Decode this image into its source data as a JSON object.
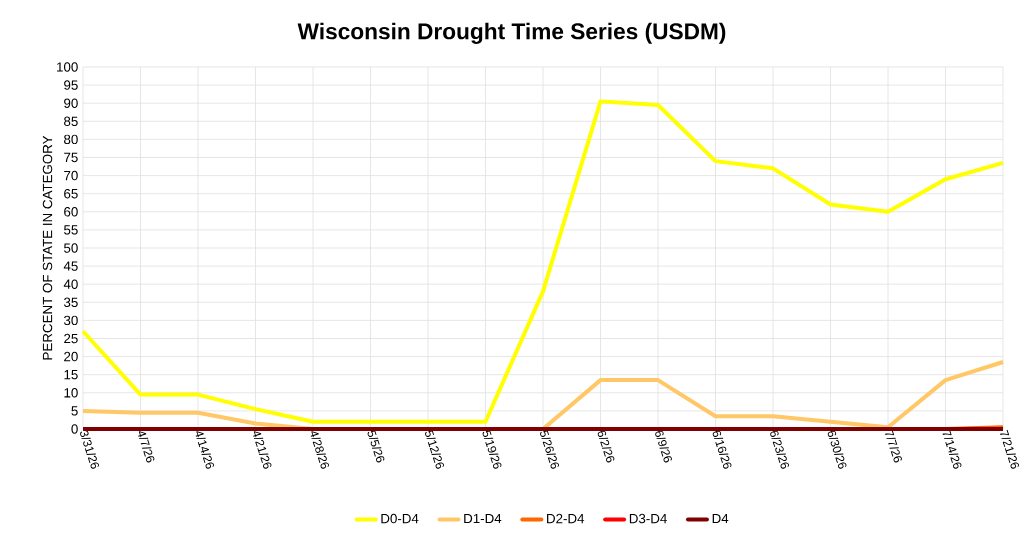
{
  "chart_data": {
    "type": "line",
    "title": "Wisconsin Drought Time Series (USDM)",
    "ylabel": "PERCENT OF STATE IN CATEGORY",
    "categories": [
      "3/31/26",
      "4/7/26",
      "4/14/26",
      "4/21/26",
      "4/28/26",
      "5/5/26",
      "5/12/26",
      "5/19/26",
      "5/26/26",
      "6/2/26",
      "6/9/26",
      "6/16/26",
      "6/23/26",
      "6/30/26",
      "7/7/26",
      "7/14/26",
      "7/21/26"
    ],
    "series": [
      {
        "name": "D0-D4",
        "color": "#ffff00",
        "values": [
          27,
          9.5,
          9.5,
          5.5,
          2,
          2,
          2,
          2,
          38,
          90.5,
          89.5,
          74,
          72,
          62,
          60,
          69,
          73.5
        ]
      },
      {
        "name": "D1-D4",
        "color": "#ffc766",
        "values": [
          5,
          4.5,
          4.5,
          1.5,
          0,
          0,
          0,
          0,
          0,
          13.5,
          13.5,
          3.5,
          3.5,
          2,
          0.5,
          13.5,
          18.5
        ]
      },
      {
        "name": "D2-D4",
        "color": "#ff6600",
        "values": [
          null,
          null,
          null,
          null,
          null,
          null,
          null,
          null,
          null,
          null,
          null,
          null,
          null,
          null,
          null,
          0,
          0.5
        ]
      },
      {
        "name": "D3-D4",
        "color": "#ff0000",
        "values": [
          null,
          null,
          null,
          null,
          null,
          null,
          null,
          null,
          null,
          null,
          null,
          null,
          null,
          null,
          null,
          null,
          null
        ]
      },
      {
        "name": "D4",
        "color": "#7f0000",
        "values": [
          0,
          0,
          0,
          0,
          0,
          0,
          0,
          0,
          0,
          0,
          0,
          0,
          0,
          0,
          0,
          0,
          0
        ]
      }
    ],
    "ylim": [
      0,
      100
    ],
    "yticks": [
      0,
      5,
      10,
      15,
      20,
      25,
      30,
      35,
      40,
      45,
      50,
      55,
      60,
      65,
      70,
      75,
      80,
      85,
      90,
      95,
      100
    ],
    "grid": true,
    "legend": "bottom",
    "marker": "none",
    "line_style": "solid"
  }
}
